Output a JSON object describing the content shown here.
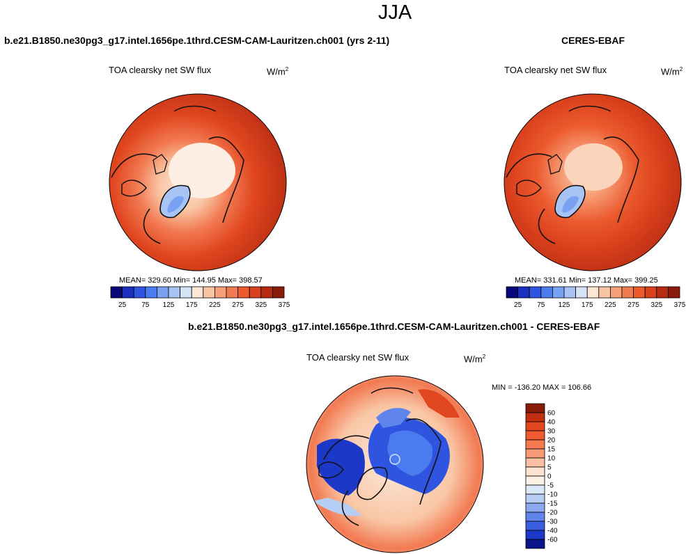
{
  "page": {
    "title": "JJA",
    "diff_title": "b.e21.B1850.ne30pg3_g17.intel.1656pe.1thrd.CESM-CAM-Lauritzen.ch001 - CERES-EBAF"
  },
  "panels": {
    "model": {
      "title": "b.e21.B1850.ne30pg3_g17.intel.1656pe.1thrd.CESM-CAM-Lauritzen.ch001 (yrs 2-11)",
      "variable": "TOA clearsky net SW flux",
      "units_base": "W/m",
      "units_exp": "2",
      "stats": "MEAN= 329.60  Min= 144.95  Max= 398.57"
    },
    "obs": {
      "title": "CERES-EBAF",
      "variable": "TOA clearsky net SW flux",
      "units_base": "W/m",
      "units_exp": "2",
      "stats": "MEAN= 331.61  Min= 137.12  Max= 399.25"
    },
    "diff": {
      "variable": "TOA clearsky net SW flux",
      "units_base": "W/m",
      "units_exp": "2",
      "stats": "MIN = -136.20 MAX = 106.66"
    }
  },
  "colorbars": {
    "abs_labels": [
      "25",
      "75",
      "125",
      "175",
      "225",
      "275",
      "325",
      "375"
    ],
    "abs_colors": [
      "#08087a",
      "#1a2ec0",
      "#2f55e0",
      "#4a7cf0",
      "#7aa2f2",
      "#a8c4f5",
      "#d6e4f7",
      "#fde6d3",
      "#f9c6a5",
      "#f6a07a",
      "#f27a52",
      "#ec5a2e",
      "#d9401c",
      "#b62c12",
      "#8a1a0a"
    ],
    "diff_labels": [
      "60",
      "40",
      "30",
      "20",
      "15",
      "10",
      "5",
      "0",
      "-5",
      "-10",
      "-15",
      "-20",
      "-30",
      "-40",
      "-60"
    ],
    "diff_colors": [
      "#8a1a0a",
      "#c22f10",
      "#e0461f",
      "#f05a32",
      "#f57a52",
      "#f89b78",
      "#fbc0a3",
      "#fde3d2",
      "#fcefe4",
      "#dce8f8",
      "#b6cdf4",
      "#8caaf0",
      "#5f85ea",
      "#3a5fe0",
      "#1c38c8",
      "#0a148a"
    ]
  },
  "chart_data": [
    {
      "type": "heatmap",
      "title": "b.e21.B1850.ne30pg3_g17.intel.1656pe.1thrd.CESM-CAM-Lauritzen.ch001 (yrs 2-11)",
      "variable": "TOA clearsky net SW flux",
      "units": "W/m2",
      "projection": "north polar stereographic",
      "mean": 329.6,
      "min": 144.95,
      "max": 398.57,
      "colorbar_levels": [
        25,
        50,
        75,
        100,
        125,
        150,
        175,
        200,
        225,
        250,
        275,
        300,
        325,
        350,
        375
      ]
    },
    {
      "type": "heatmap",
      "title": "CERES-EBAF",
      "variable": "TOA clearsky net SW flux",
      "units": "W/m2",
      "projection": "north polar stereographic",
      "mean": 331.61,
      "min": 137.12,
      "max": 399.25,
      "colorbar_levels": [
        25,
        50,
        75,
        100,
        125,
        150,
        175,
        200,
        225,
        250,
        275,
        300,
        325,
        350,
        375
      ]
    },
    {
      "type": "heatmap",
      "title": "b.e21.B1850.ne30pg3_g17.intel.1656pe.1thrd.CESM-CAM-Lauritzen.ch001 - CERES-EBAF",
      "variable": "TOA clearsky net SW flux",
      "units": "W/m2",
      "projection": "north polar stereographic",
      "min": -136.2,
      "max": 106.66,
      "colorbar_levels": [
        -60,
        -40,
        -30,
        -20,
        -15,
        -10,
        -5,
        0,
        5,
        10,
        15,
        20,
        30,
        40,
        60
      ]
    }
  ]
}
